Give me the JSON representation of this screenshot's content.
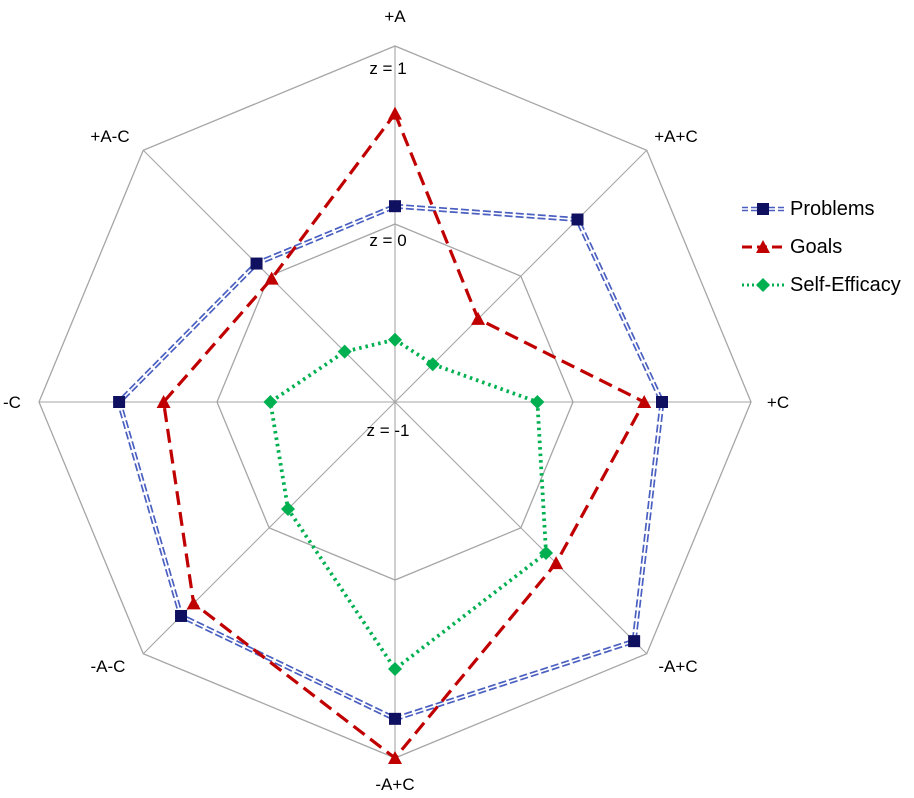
{
  "chart_data": {
    "type": "radar",
    "categories": [
      "+A",
      "+A+C",
      "+C",
      "-A+C",
      "-A+C",
      "-A-C",
      "-C",
      "+A-C"
    ],
    "ring_labels": [
      "z = 1",
      "z = 0",
      "z = -1"
    ],
    "rlim": [
      -1,
      1
    ],
    "grid": true,
    "legend_position": "right",
    "series": [
      {
        "name": "Problems",
        "color": "#1f1f7a",
        "line": "double",
        "marker": "square",
        "values": [
          0.1,
          0.45,
          0.5,
          0.9,
          0.78,
          0.7,
          0.55,
          0.1
        ]
      },
      {
        "name": "Goals",
        "color": "#c00000",
        "line": "dashed",
        "marker": "triangle",
        "values": [
          0.62,
          -0.34,
          0.4,
          0.28,
          1.0,
          0.6,
          0.3,
          -0.02
        ]
      },
      {
        "name": "Self-Efficacy",
        "color": "#00b050",
        "line": "dotted",
        "marker": "diamond",
        "values": [
          -0.65,
          -0.7,
          -0.2,
          0.2,
          0.5,
          -0.15,
          -0.3,
          -0.6
        ]
      }
    ]
  }
}
